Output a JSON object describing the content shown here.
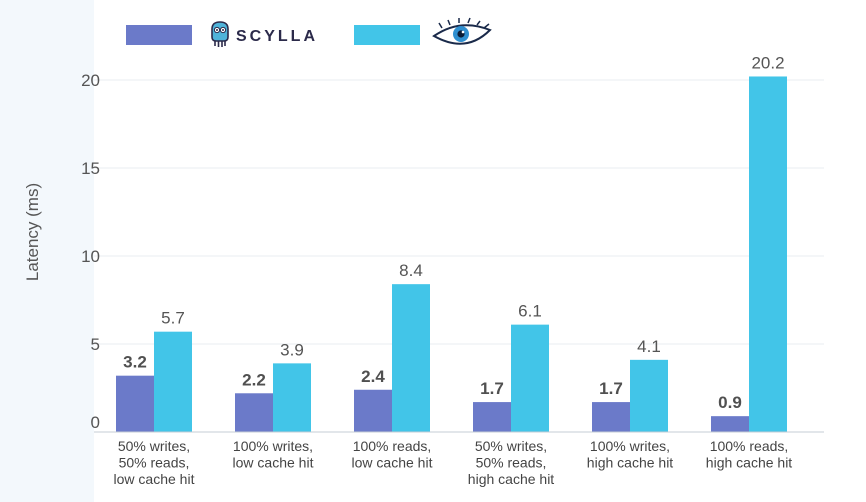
{
  "chart_data": {
    "type": "bar",
    "title": "",
    "xlabel": "",
    "ylabel": "Latency (ms)",
    "ylim": [
      0,
      22
    ],
    "yticks": [
      0,
      5,
      10,
      15,
      20
    ],
    "grid": true,
    "legend_position": "top-left",
    "categories": [
      [
        "50% writes,",
        "50% reads,",
        "low cache hit"
      ],
      [
        "100% writes,",
        "low cache hit"
      ],
      [
        "100% reads,",
        "low cache hit"
      ],
      [
        "50% writes,",
        "50% reads,",
        "high cache hit"
      ],
      [
        "100% writes,",
        "high cache hit"
      ],
      [
        "100% reads,",
        "high cache hit"
      ]
    ],
    "series": [
      {
        "legend_logo": "scylla-monster-logo",
        "legend_text": "SCYLLA",
        "color": "#6b7ac9",
        "values": [
          3.2,
          2.2,
          2.4,
          1.7,
          1.7,
          0.9
        ],
        "labels": [
          "3.2",
          "2.2",
          "2.4",
          "1.7",
          "1.7",
          "0.9"
        ],
        "label_bold": true
      },
      {
        "legend_logo": "cassandra-eye-logo",
        "color": "#42c5e8",
        "values": [
          5.7,
          3.9,
          8.4,
          6.1,
          4.1,
          20.2
        ],
        "labels": [
          "5.7",
          "3.9",
          "8.4",
          "6.1",
          "4.1",
          "20.2"
        ],
        "label_bold": false
      }
    ]
  }
}
